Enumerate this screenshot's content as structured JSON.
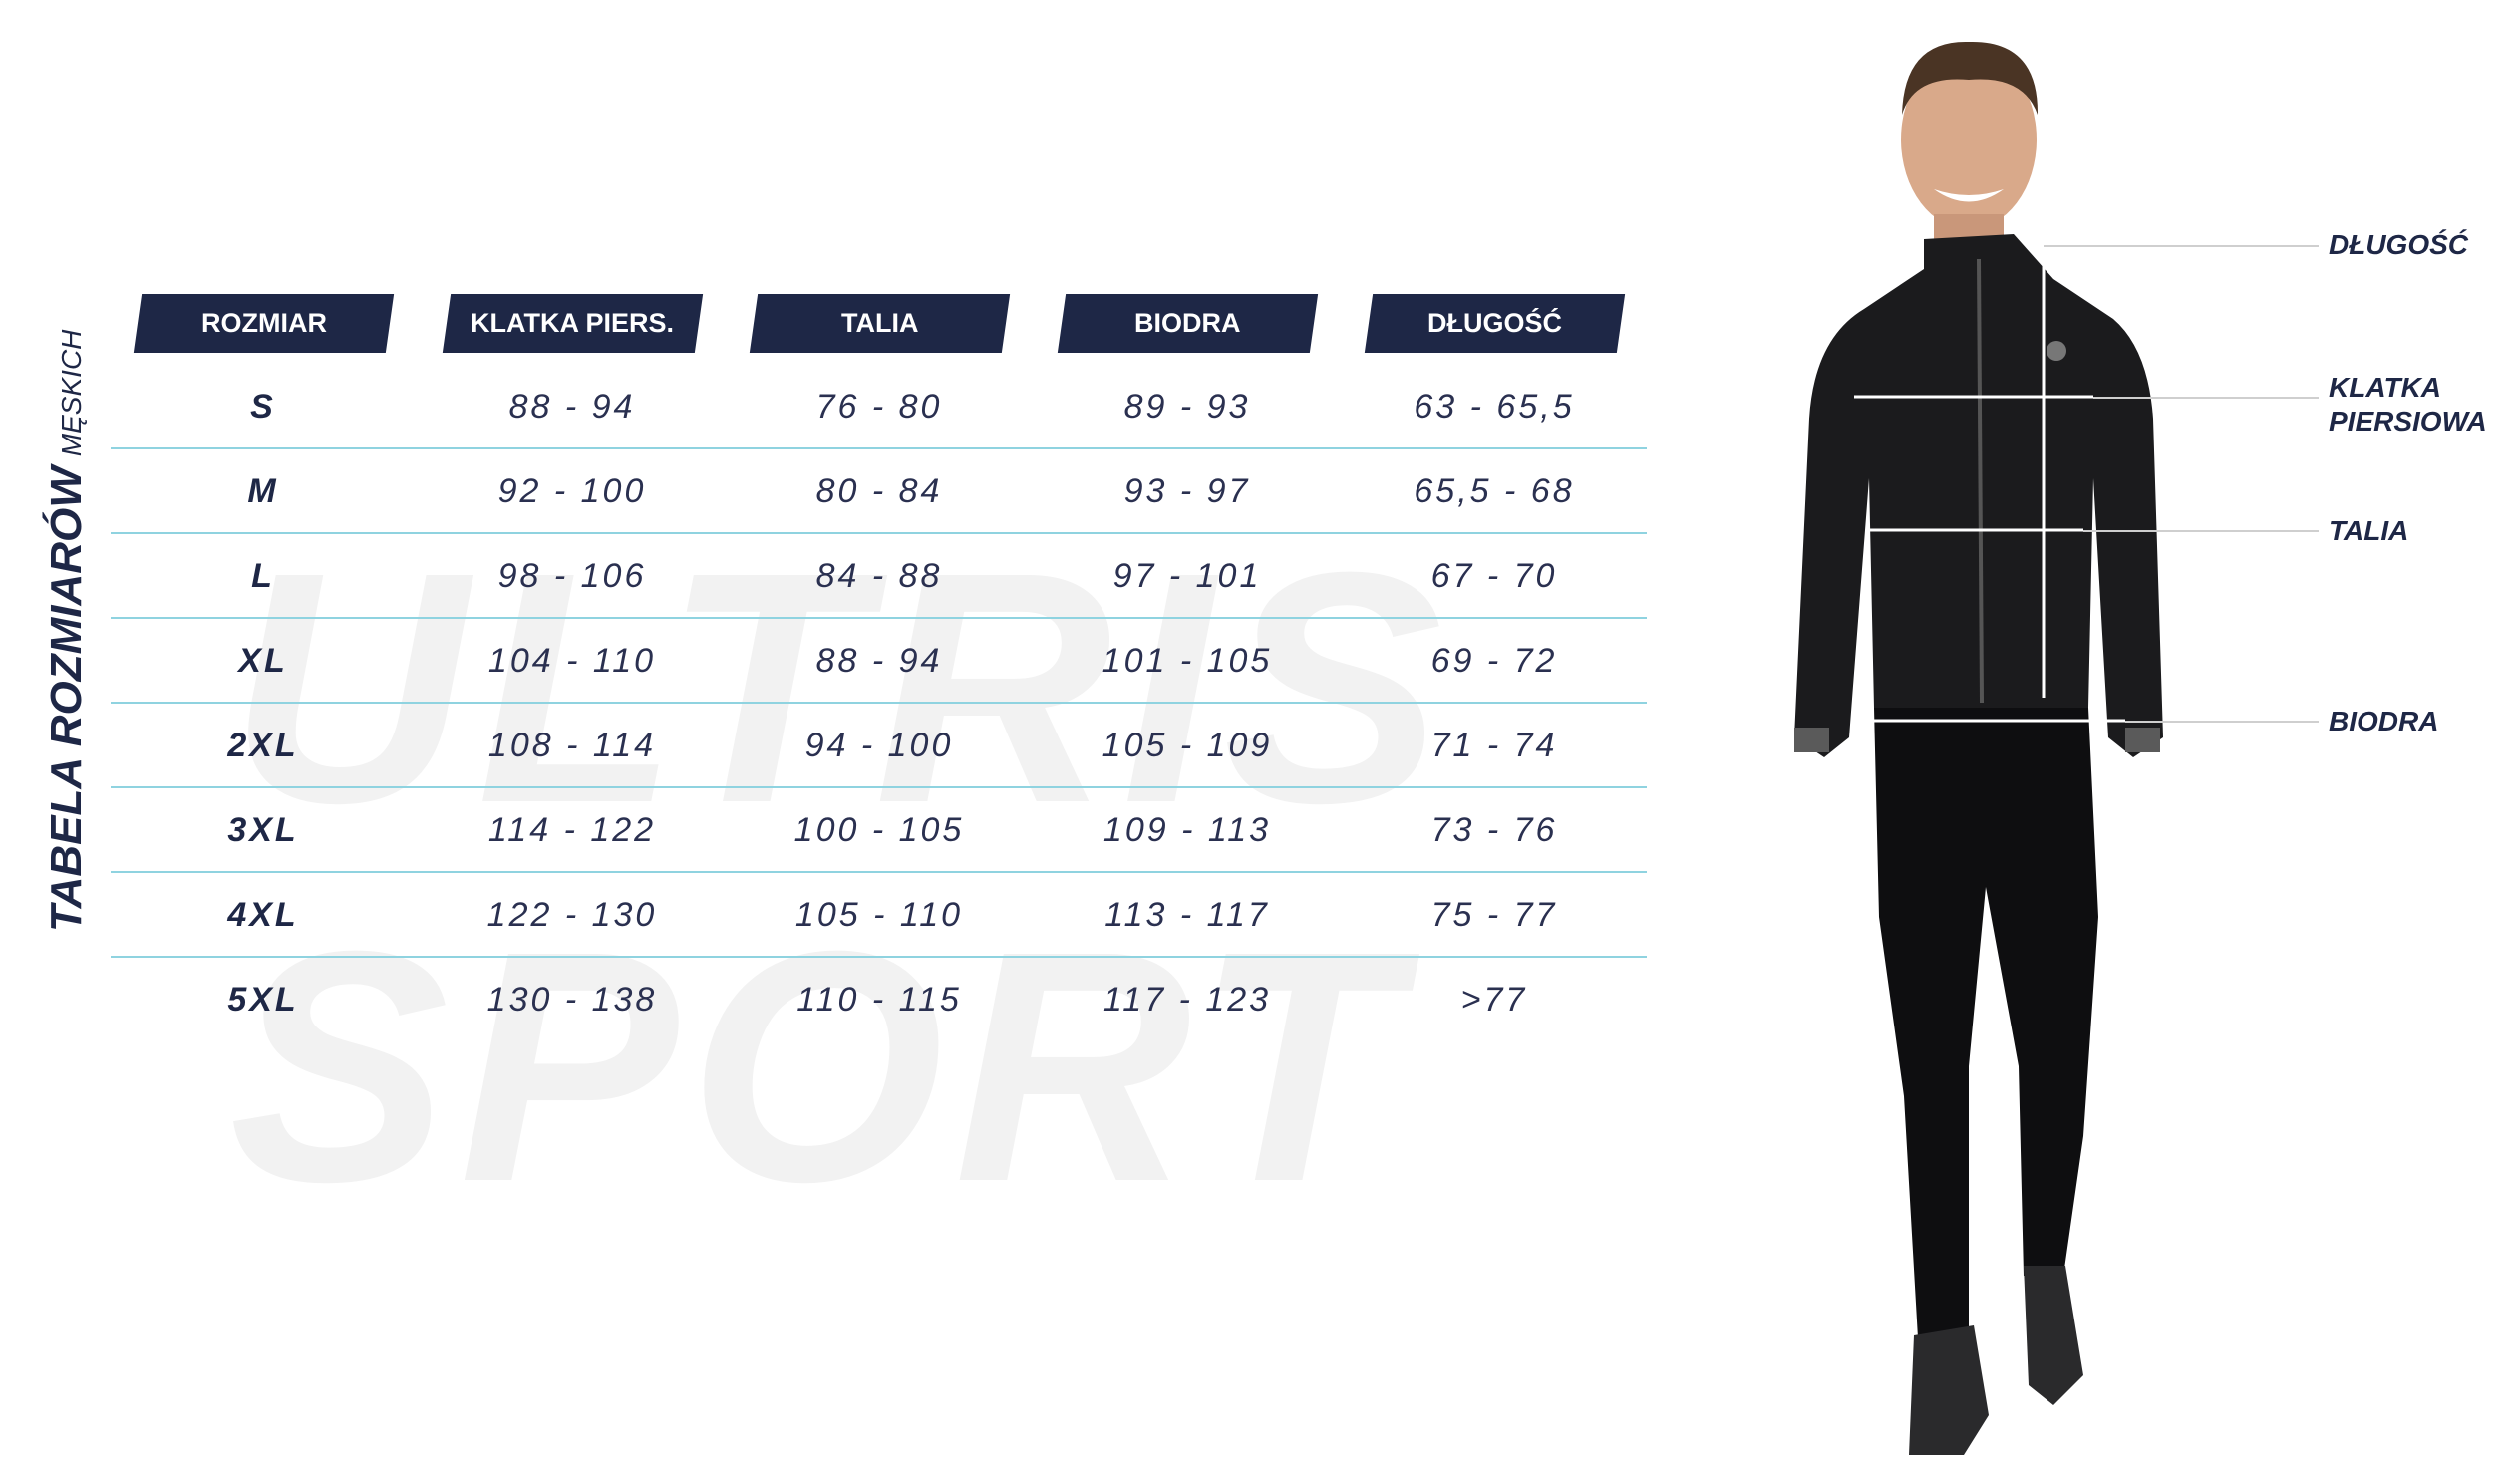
{
  "title": {
    "main": "TABELA ROZMIARÓW",
    "sub": "MĘSKICH"
  },
  "watermark": "ULTRIS SPORT",
  "headers": [
    "ROZMIAR",
    "KLATKA PIERS.",
    "TALIA",
    "BIODRA",
    "DŁUGOŚĆ"
  ],
  "rows": [
    [
      "S",
      "88 - 94",
      "76 - 80",
      "89 - 93",
      "63 - 65,5"
    ],
    [
      "M",
      "92 - 100",
      "80 - 84",
      "93 - 97",
      "65,5 - 68"
    ],
    [
      "L",
      "98 - 106",
      "84 - 88",
      "97 - 101",
      "67 - 70"
    ],
    [
      "XL",
      "104 - 110",
      "88 - 94",
      "101 - 105",
      "69 - 72"
    ],
    [
      "2XL",
      "108 - 114",
      "94 - 100",
      "105 - 109",
      "71 - 74"
    ],
    [
      "3XL",
      "114 - 122",
      "100 - 105",
      "109 - 113",
      "73 - 76"
    ],
    [
      "4XL",
      "122 - 130",
      "105 - 110",
      "113 - 117",
      "75 - 77"
    ],
    [
      "5XL",
      "130 - 138",
      "110 - 115",
      "117 - 123",
      ">77"
    ]
  ],
  "diagram_labels": {
    "length": "DŁUGOŚĆ",
    "chest_1": "KLATKA",
    "chest_2": "PIERSIOWA",
    "waist": "TALIA",
    "hips": "BIODRA"
  },
  "colors": {
    "navy": "#1e2746",
    "row_line": "#8fd3e0"
  }
}
